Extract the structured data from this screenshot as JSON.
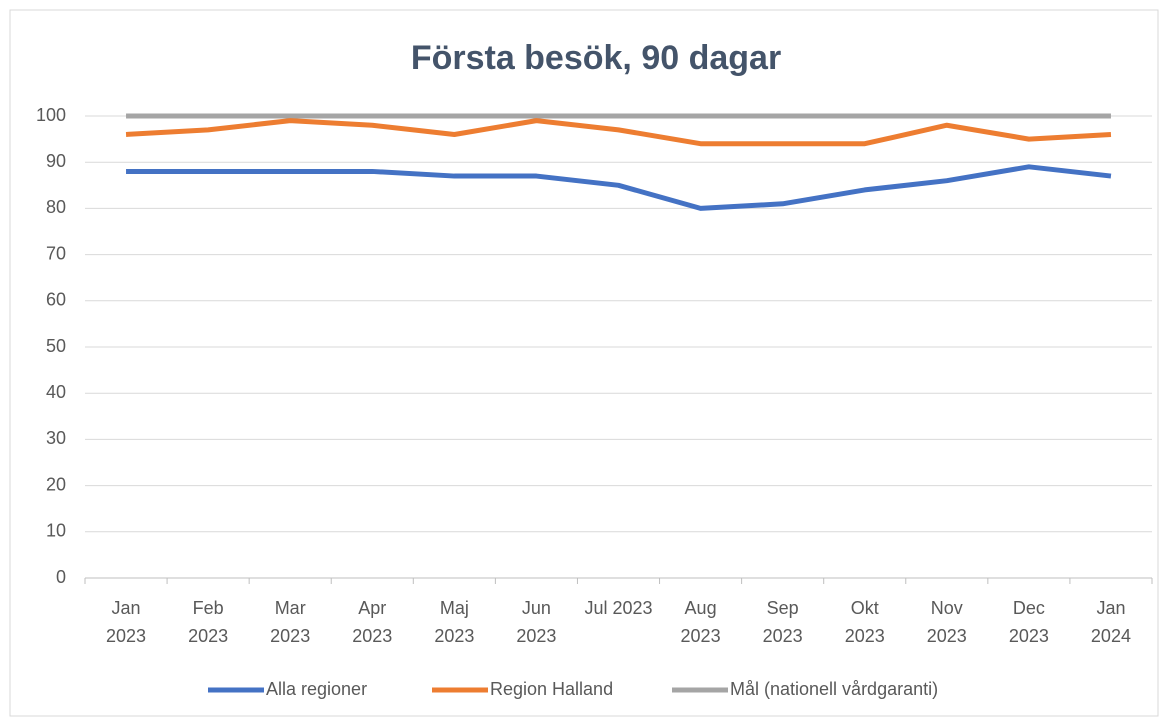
{
  "chart_data": {
    "type": "line",
    "title": "Första besök, 90 dagar",
    "categories": [
      "Jan\n2023",
      "Feb\n2023",
      "Mar\n2023",
      "Apr\n2023",
      "Maj\n2023",
      "Jun\n2023",
      "Jul 2023",
      "Aug\n2023",
      "Sep\n2023",
      "Okt\n2023",
      "Nov\n2023",
      "Dec\n2023",
      "Jan\n2024"
    ],
    "series": [
      {
        "name": "Alla regioner",
        "color": "#4472c4",
        "values": [
          88,
          88,
          88,
          88,
          87,
          87,
          85,
          80,
          81,
          84,
          86,
          89,
          87
        ]
      },
      {
        "name": "Region Halland",
        "color": "#ed7d31",
        "values": [
          96,
          97,
          99,
          98,
          96,
          99,
          97,
          94,
          94,
          94,
          98,
          95,
          96
        ]
      },
      {
        "name": "Mål (nationell vårdgaranti)",
        "color": "#a5a5a5",
        "values": [
          100,
          100,
          100,
          100,
          100,
          100,
          100,
          100,
          100,
          100,
          100,
          100,
          100
        ]
      }
    ],
    "ylim": [
      0,
      100
    ],
    "yticks": [
      0,
      10,
      20,
      30,
      40,
      50,
      60,
      70,
      80,
      90,
      100
    ],
    "grid": true,
    "legend": "bottom"
  }
}
